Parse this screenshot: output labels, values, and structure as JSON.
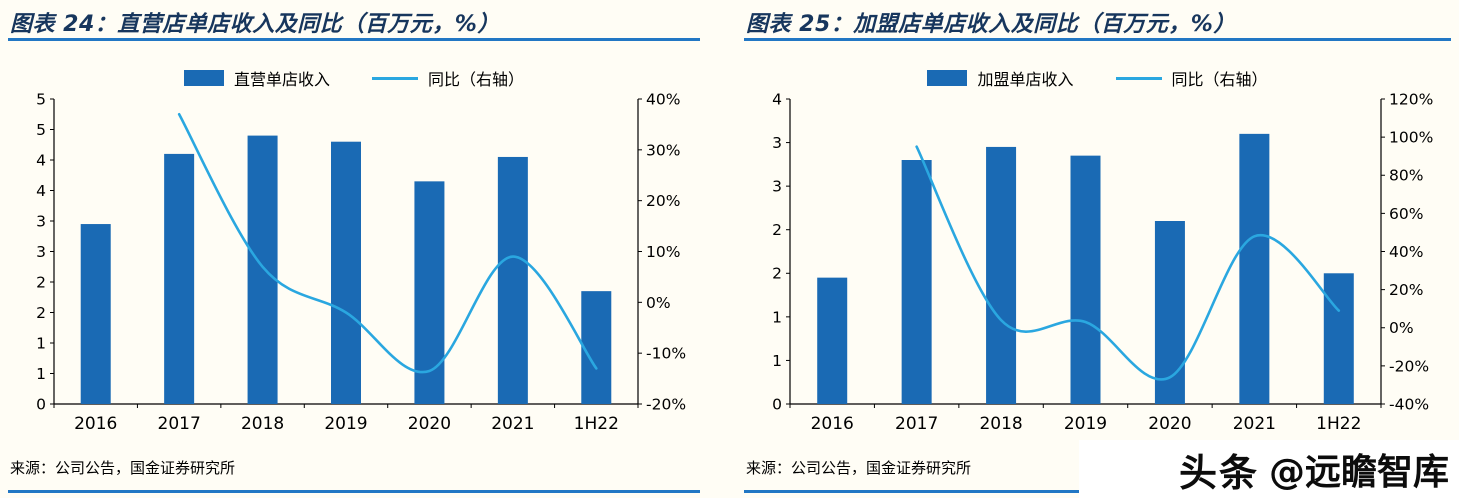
{
  "colors": {
    "background": "#fffdf5",
    "bar": "#1a6ab4",
    "line": "#2aa7e0",
    "rule": "#2277c4",
    "title": "#17365d",
    "axis": "#000000"
  },
  "watermark": {
    "brand": "头条",
    "handle": "@远瞻智库"
  },
  "chart_data": [
    {
      "type": "bar+line",
      "title": "图表 24：直营店单店收入及同比（百万元，%）",
      "source": "来源：公司公告，国金证券研究所",
      "legend_position": "top",
      "grid": false,
      "categories": [
        "2016",
        "2017",
        "2018",
        "2019",
        "2020",
        "2021",
        "1H22"
      ],
      "series": [
        {
          "name": "直营单店收入",
          "type": "bar",
          "axis": "left",
          "values": [
            2.95,
            4.1,
            4.4,
            4.3,
            3.65,
            4.05,
            1.85
          ]
        },
        {
          "name": "同比（右轴）",
          "type": "line",
          "axis": "right",
          "values": [
            null,
            37,
            7,
            -2,
            -13.5,
            9,
            -13
          ]
        }
      ],
      "left_axis": {
        "min": 0,
        "max": 5,
        "step": 0.5,
        "tick_labels_top_to_bottom": [
          "5",
          "5",
          "4",
          "4",
          "3",
          "3",
          "2",
          "2",
          "1",
          "1",
          "0"
        ]
      },
      "right_axis": {
        "min": -20,
        "max": 40,
        "step": 10,
        "tick_labels_top_to_bottom": [
          "40%",
          "30%",
          "20%",
          "10%",
          "0%",
          "-10%",
          "-20%"
        ]
      }
    },
    {
      "type": "bar+line",
      "title": "图表 25：加盟店单店收入及同比（百万元，%）",
      "source": "来源：公司公告，国金证券研究所",
      "legend_position": "top",
      "grid": false,
      "categories": [
        "2016",
        "2017",
        "2018",
        "2019",
        "2020",
        "2021",
        "1H22"
      ],
      "series": [
        {
          "name": "加盟单店收入",
          "type": "bar",
          "axis": "left",
          "values": [
            1.45,
            2.8,
            2.95,
            2.85,
            2.1,
            3.1,
            1.5
          ]
        },
        {
          "name": "同比（右轴）",
          "type": "line",
          "axis": "right",
          "values": [
            null,
            95,
            4,
            3,
            -26,
            48,
            9
          ]
        }
      ],
      "left_axis": {
        "min": 0,
        "max": 3.5,
        "step": 0.5,
        "tick_labels_top_to_bottom": [
          "4",
          "3",
          "3",
          "2",
          "2",
          "1",
          "1",
          "0"
        ]
      },
      "right_axis": {
        "min": -40,
        "max": 120,
        "step": 20,
        "tick_labels_top_to_bottom": [
          "120%",
          "100%",
          "80%",
          "60%",
          "40%",
          "20%",
          "0%",
          "-20%",
          "-40%"
        ]
      }
    }
  ]
}
